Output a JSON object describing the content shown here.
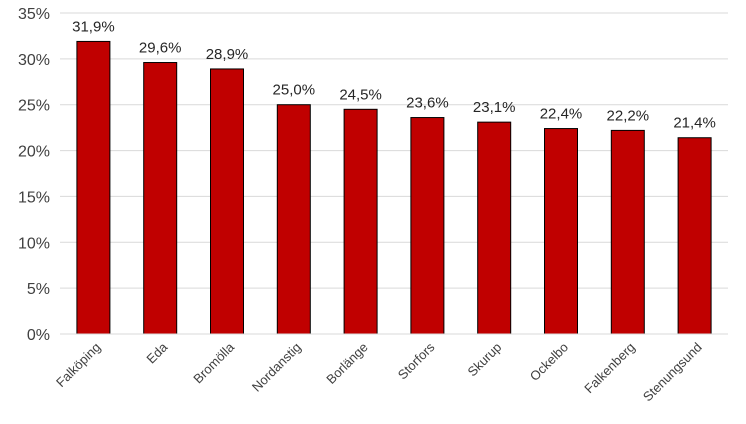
{
  "chart_data": {
    "type": "bar",
    "categories": [
      "Falköping",
      "Eda",
      "Bromölla",
      "Nordanstig",
      "Borlänge",
      "Storfors",
      "Skurup",
      "Ockelbo",
      "Falkenberg",
      "Stenungsund"
    ],
    "values": [
      31.9,
      29.6,
      28.9,
      25.0,
      24.5,
      23.6,
      23.1,
      22.4,
      22.2,
      21.4
    ],
    "data_labels": [
      "31,9%",
      "29,6%",
      "28,9%",
      "25,0%",
      "24,5%",
      "23,6%",
      "23,1%",
      "22,4%",
      "22,2%",
      "21,4%"
    ],
    "title": "",
    "xlabel": "",
    "ylabel": "",
    "ylim": [
      0,
      35
    ],
    "y_ticks": [
      0,
      5,
      10,
      15,
      20,
      25,
      30,
      35
    ],
    "y_tick_labels": [
      "0%",
      "5%",
      "10%",
      "15%",
      "20%",
      "25%",
      "30%",
      "35%"
    ],
    "grid": true,
    "legend": "none",
    "colors": {
      "bar_fill": "#C00000",
      "bar_stroke": "#000000",
      "grid": "#D9D9D9",
      "text": "#404040"
    }
  }
}
